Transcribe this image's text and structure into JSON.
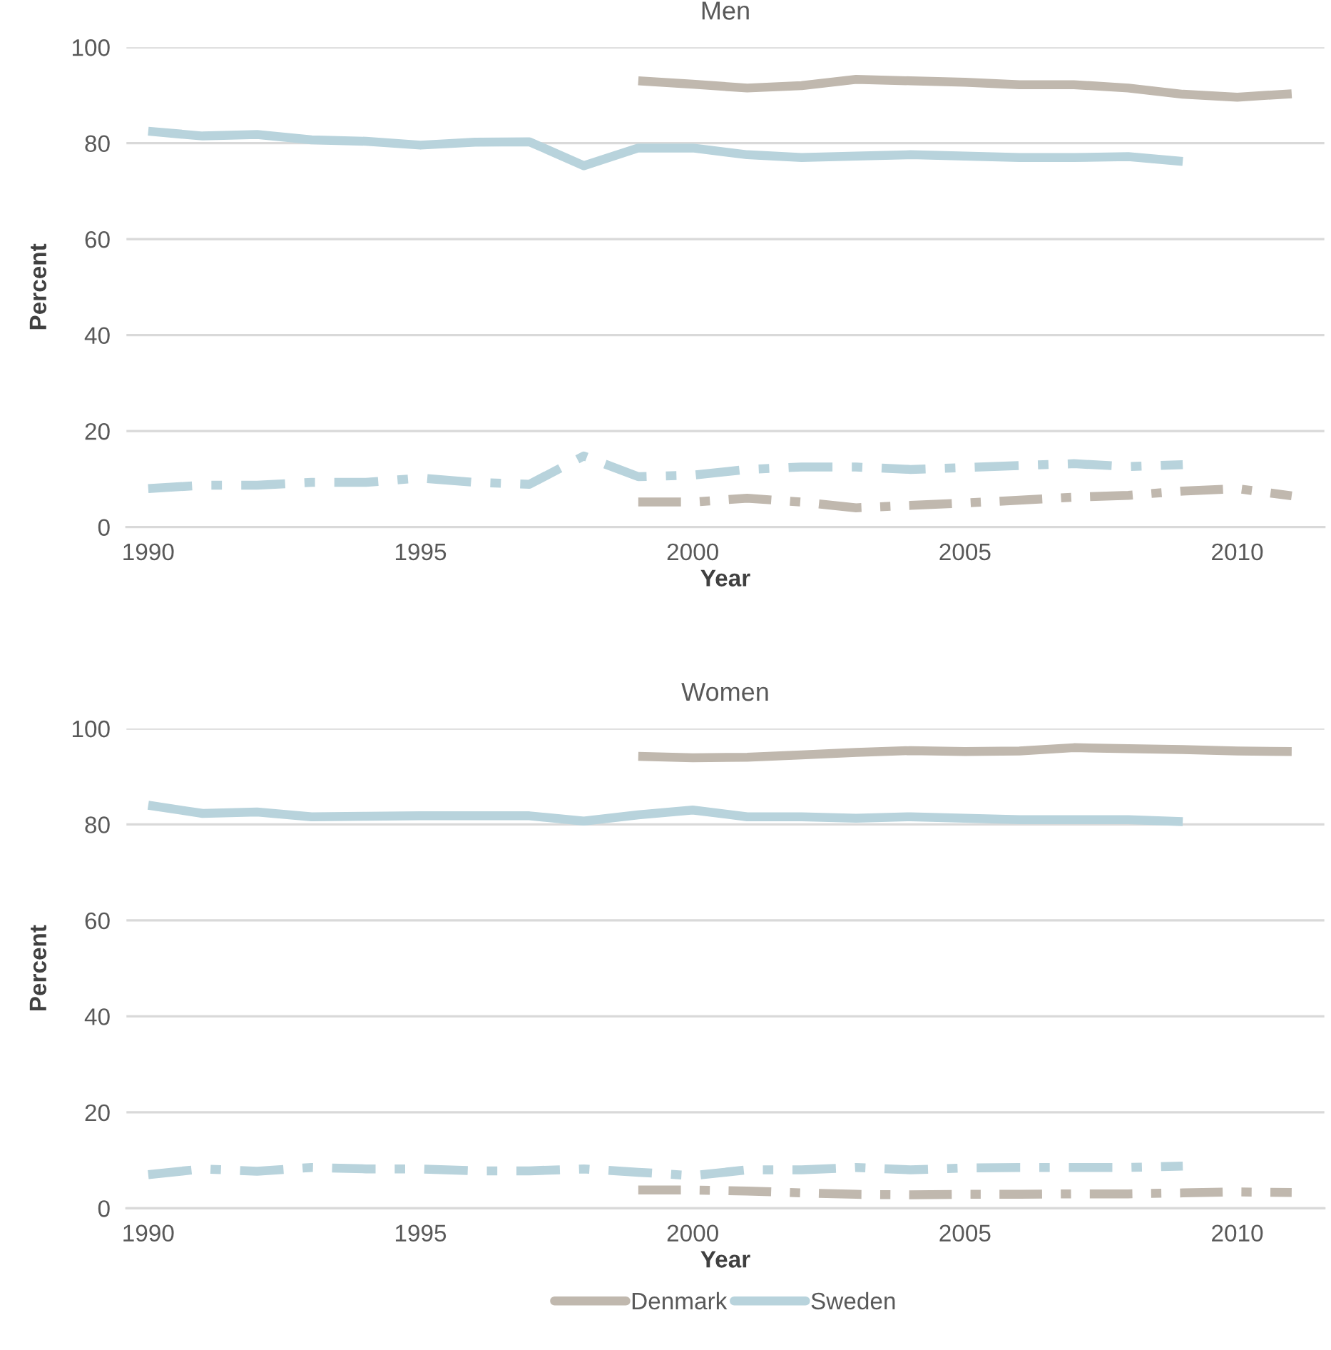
{
  "chart_data": [
    {
      "type": "line",
      "title": "Men",
      "xlabel": "Year",
      "ylabel": "Percent",
      "xlim": [
        1989.6,
        2011.6
      ],
      "xticks": [
        1990,
        1995,
        2000,
        2005,
        2010
      ],
      "ylim": [
        0,
        100
      ],
      "yticks": [
        0,
        20,
        40,
        60,
        80,
        100
      ],
      "grid": "y",
      "legend": false,
      "series": [
        {
          "color": "#c0b8ae",
          "line_style": "solid",
          "x": [
            1999,
            2000,
            2001,
            2002,
            2003,
            2004,
            2005,
            2006,
            2007,
            2008,
            2009,
            2010,
            2011
          ],
          "values": [
            93,
            92.3,
            91.5,
            92,
            93.3,
            93,
            92.7,
            92.2,
            92.2,
            91.5,
            90.2,
            89.6,
            90.3
          ]
        },
        {
          "color": "#b8d3dc",
          "line_style": "solid",
          "x": [
            1990,
            1991,
            1992,
            1993,
            1994,
            1995,
            1996,
            1997,
            1998,
            1999,
            2000,
            2001,
            2002,
            2003,
            2004,
            2005,
            2006,
            2007,
            2008,
            2009
          ],
          "values": [
            82.5,
            81.5,
            81.8,
            80.7,
            80.4,
            79.6,
            80.2,
            80.3,
            75.3,
            79,
            79,
            77.6,
            77,
            77.3,
            77.6,
            77.3,
            77,
            77,
            77.2,
            76.2
          ]
        },
        {
          "color": "#b8d3dc",
          "line_style": "dashed",
          "x": [
            1990,
            1991,
            1992,
            1993,
            1994,
            1995,
            1996,
            1997,
            1998,
            1999,
            2000,
            2001,
            2002,
            2003,
            2004,
            2005,
            2006,
            2007,
            2008,
            2009
          ],
          "values": [
            8,
            8.7,
            8.7,
            9.3,
            9.3,
            10.2,
            9.3,
            8.9,
            14.8,
            10.5,
            10.8,
            12,
            12.5,
            12.5,
            12,
            12.4,
            12.8,
            13.2,
            12.6,
            13
          ]
        },
        {
          "color": "#c0b8ae",
          "line_style": "dashed",
          "x": [
            1999,
            2000,
            2001,
            2002,
            2003,
            2004,
            2005,
            2006,
            2007,
            2008,
            2009,
            2010,
            2011
          ],
          "values": [
            5.2,
            5.2,
            6,
            5.2,
            4,
            4.5,
            5,
            5.6,
            6.2,
            6.6,
            7.5,
            8,
            6.5
          ]
        }
      ]
    },
    {
      "type": "line",
      "title": "Women",
      "xlabel": "Year",
      "ylabel": "Percent",
      "xlim": [
        1989.6,
        2011.6
      ],
      "xticks": [
        1990,
        1995,
        2000,
        2005,
        2010
      ],
      "ylim": [
        0,
        100
      ],
      "yticks": [
        0,
        20,
        40,
        60,
        80,
        100
      ],
      "grid": "y",
      "legend": "bottom",
      "series": [
        {
          "name": "Denmark",
          "color": "#c0b8ae",
          "line_style": "solid",
          "x": [
            1999,
            2000,
            2001,
            2002,
            2003,
            2004,
            2005,
            2006,
            2007,
            2008,
            2009,
            2010,
            2011
          ],
          "values": [
            94.2,
            93.9,
            94,
            94.5,
            95,
            95.4,
            95.2,
            95.3,
            96,
            95.8,
            95.6,
            95.3,
            95.2
          ]
        },
        {
          "name": "Sweden",
          "color": "#b8d3dc",
          "line_style": "solid",
          "x": [
            1990,
            1991,
            1992,
            1993,
            1994,
            1995,
            1996,
            1997,
            1998,
            1999,
            2000,
            2001,
            2002,
            2003,
            2004,
            2005,
            2006,
            2007,
            2008,
            2009
          ],
          "values": [
            84,
            82.3,
            82.6,
            81.6,
            81.7,
            81.8,
            81.8,
            81.8,
            80.7,
            82,
            83,
            81.6,
            81.6,
            81.3,
            81.6,
            81.3,
            81,
            81,
            81,
            80.6
          ]
        },
        {
          "color": "#b8d3dc",
          "line_style": "dashed",
          "x": [
            1990,
            1991,
            1992,
            1993,
            1994,
            1995,
            1996,
            1997,
            1998,
            1999,
            2000,
            2001,
            2002,
            2003,
            2004,
            2005,
            2006,
            2007,
            2008,
            2009
          ],
          "values": [
            7,
            8.2,
            7.7,
            8.5,
            8.2,
            8.2,
            7.8,
            7.8,
            8.2,
            7.5,
            6.8,
            8,
            8,
            8.5,
            8,
            8.4,
            8.5,
            8.5,
            8.5,
            8.8
          ]
        },
        {
          "color": "#c0b8ae",
          "line_style": "dashed",
          "x": [
            1999,
            2000,
            2001,
            2002,
            2003,
            2004,
            2005,
            2006,
            2007,
            2008,
            2009,
            2010,
            2011
          ],
          "values": [
            3.8,
            3.8,
            3.6,
            3.2,
            2.9,
            2.8,
            2.9,
            2.9,
            3,
            3,
            3.2,
            3.4,
            3.3
          ]
        }
      ]
    }
  ]
}
